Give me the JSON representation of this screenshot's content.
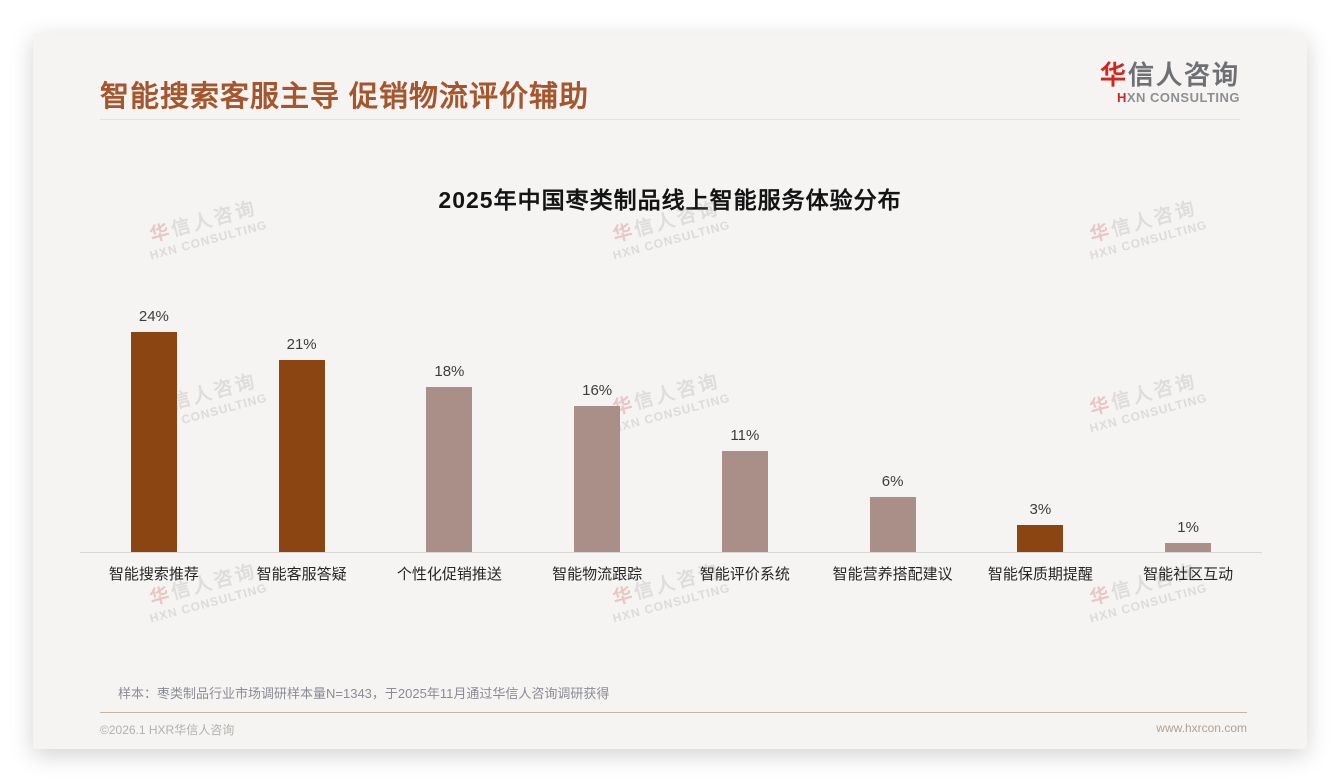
{
  "page": {
    "header": {
      "title": "智能搜索客服主导 促销物流评价辅助",
      "logo": {
        "cn_first": "华",
        "cn_rest": "信人咨询",
        "en_first": "H",
        "en_rest": "XN CONSULTING"
      }
    },
    "footnote": "样本：枣类制品行业市场调研样本量N=1343，于2025年11月通过华信人咨询调研获得",
    "footer": {
      "copyright": "©2026.1 HXR华信人咨询",
      "website": "www.hxrcon.com"
    },
    "watermark": {
      "line1_first": "华",
      "line1_rest": "信人咨询",
      "line2": "HXN CONSULTING"
    }
  },
  "chart_data": {
    "type": "bar",
    "title": "2025年中国枣类制品线上智能服务体验分布",
    "categories": [
      "智能搜索推荐",
      "智能客服答疑",
      "个性化促销推送",
      "智能物流跟踪",
      "智能评价系统",
      "智能营养搭配建议",
      "智能保质期提醒",
      "智能社区互动"
    ],
    "values": [
      24,
      21,
      18,
      16,
      11,
      6,
      3,
      1
    ],
    "value_labels": [
      "24%",
      "21%",
      "18%",
      "16%",
      "11%",
      "6%",
      "3%",
      "1%"
    ],
    "bar_colors": [
      "#8a4512",
      "#8a4512",
      "#aa8f88",
      "#aa8f88",
      "#aa8f88",
      "#aa8f88",
      "#8a4512",
      "#aa8f88"
    ],
    "xlabel": "",
    "ylabel": "",
    "ylim": [
      0,
      26
    ],
    "grid": false,
    "legend": null,
    "value_label_position": "above-bar"
  },
  "colors": {
    "page_title_brown": "#a4562d",
    "bar_dark_brown": "#8a4512",
    "bar_mauve": "#aa8f88",
    "logo_red": "#d2251c",
    "card_background": "#f5f4f3"
  }
}
